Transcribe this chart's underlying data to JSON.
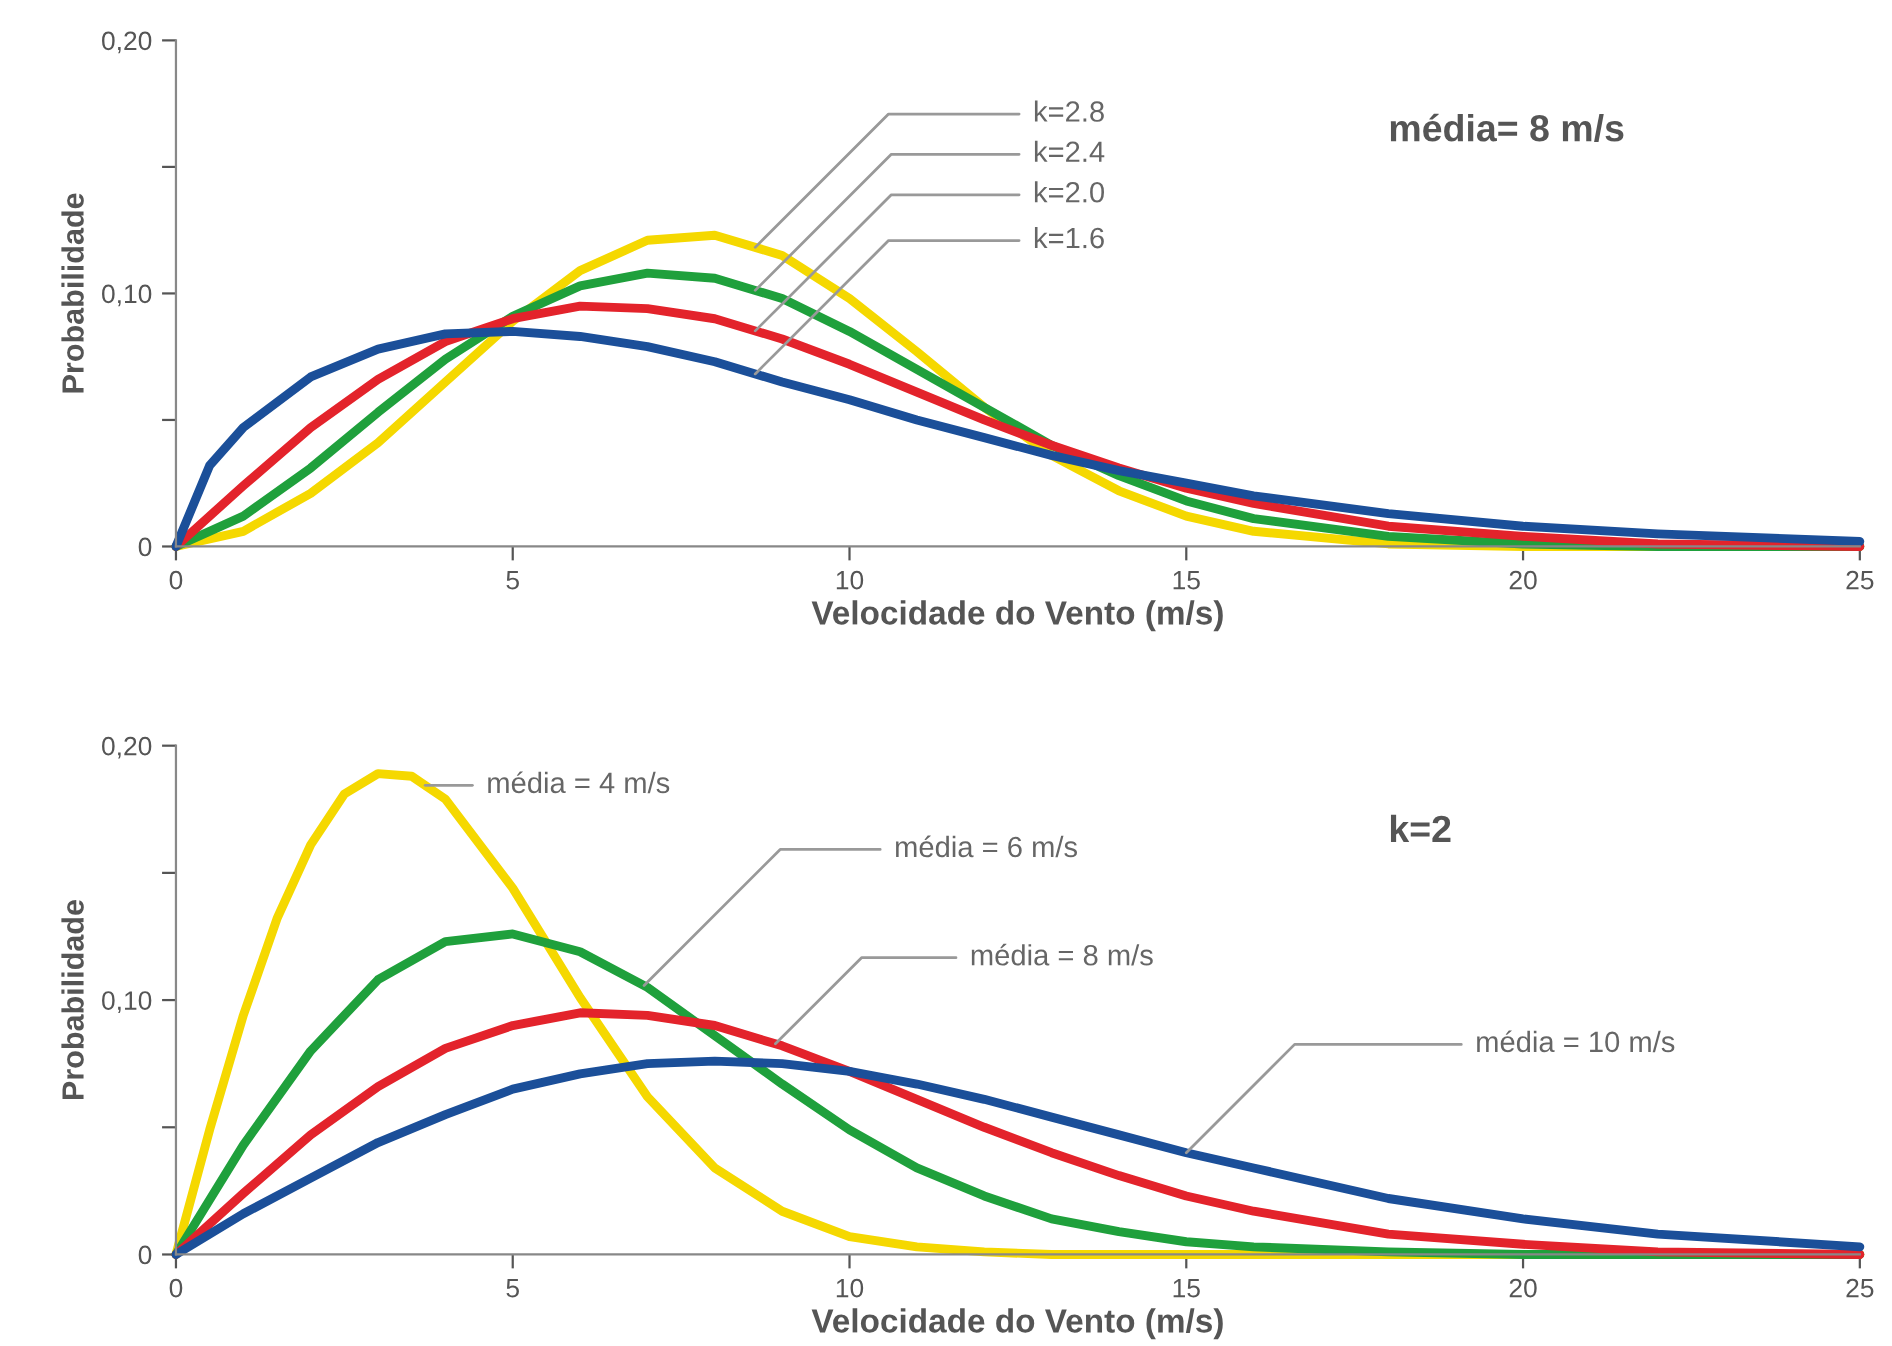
{
  "chart_data": [
    {
      "type": "line",
      "xlabel": "Velocidade do Vento (m/s)",
      "ylabel": "Probabilidade",
      "annotations": [
        "média= 8 m/s"
      ],
      "xlim": [
        0,
        25
      ],
      "ylim": [
        0,
        0.2
      ],
      "xticks": [
        0,
        5,
        10,
        15,
        20,
        25
      ],
      "yticks": [
        {
          "value": 0,
          "label": "0"
        },
        {
          "value": 0.05,
          "label": null
        },
        {
          "value": 0.1,
          "label": "0,10"
        },
        {
          "value": 0.15,
          "label": null
        },
        {
          "value": 0.2,
          "label": "0,20"
        }
      ],
      "series": [
        {
          "name": "k=2.8",
          "color": "#f5d800",
          "x": [
            0,
            1,
            2,
            3,
            4,
            5,
            6,
            7,
            8,
            9,
            10,
            11,
            12,
            13,
            14,
            15,
            16,
            18,
            20,
            22,
            25
          ],
          "values": [
            0,
            0.006,
            0.021,
            0.041,
            0.065,
            0.089,
            0.109,
            0.121,
            0.123,
            0.115,
            0.098,
            0.077,
            0.055,
            0.036,
            0.022,
            0.012,
            0.006,
            0.001,
            0,
            0,
            0
          ]
        },
        {
          "name": "k=2.4",
          "color": "#1fa03c",
          "x": [
            0,
            1,
            2,
            3,
            4,
            5,
            6,
            7,
            8,
            9,
            10,
            11,
            12,
            13,
            14,
            15,
            16,
            18,
            20,
            22,
            25
          ],
          "values": [
            0,
            0.012,
            0.031,
            0.053,
            0.074,
            0.091,
            0.103,
            0.108,
            0.106,
            0.098,
            0.085,
            0.07,
            0.055,
            0.04,
            0.028,
            0.018,
            0.011,
            0.004,
            0.001,
            0,
            0
          ]
        },
        {
          "name": "k=2.0",
          "color": "#e3232b",
          "x": [
            0,
            1,
            2,
            3,
            4,
            5,
            6,
            7,
            8,
            9,
            10,
            11,
            12,
            13,
            14,
            15,
            16,
            18,
            20,
            22,
            25
          ],
          "values": [
            0,
            0.024,
            0.047,
            0.066,
            0.081,
            0.09,
            0.095,
            0.094,
            0.09,
            0.082,
            0.072,
            0.061,
            0.05,
            0.04,
            0.031,
            0.023,
            0.017,
            0.008,
            0.004,
            0.001,
            0
          ]
        },
        {
          "name": "k=1.6",
          "color": "#1b4f99",
          "x": [
            0,
            0.5,
            1,
            2,
            3,
            4,
            5,
            6,
            7,
            8,
            9,
            10,
            11,
            12,
            13,
            14,
            15,
            16,
            18,
            20,
            22,
            25
          ],
          "values": [
            0,
            0.032,
            0.047,
            0.067,
            0.078,
            0.084,
            0.085,
            0.083,
            0.079,
            0.073,
            0.065,
            0.058,
            0.05,
            0.043,
            0.036,
            0.03,
            0.025,
            0.02,
            0.013,
            0.008,
            0.005,
            0.002
          ]
        }
      ]
    },
    {
      "type": "line",
      "xlabel": "Velocidade do Vento (m/s)",
      "ylabel": "Probabilidade",
      "annotations": [
        "k=2"
      ],
      "xlim": [
        0,
        25
      ],
      "ylim": [
        0,
        0.2
      ],
      "xticks": [
        0,
        5,
        10,
        15,
        20,
        25
      ],
      "yticks": [
        {
          "value": 0,
          "label": "0"
        },
        {
          "value": 0.05,
          "label": null
        },
        {
          "value": 0.1,
          "label": "0,10"
        },
        {
          "value": 0.15,
          "label": null
        },
        {
          "value": 0.2,
          "label": "0,20"
        }
      ],
      "series": [
        {
          "name": "média = 4 m/s",
          "color": "#f5d800",
          "x": [
            0,
            0.5,
            1,
            1.5,
            2,
            2.5,
            3,
            3.5,
            4,
            5,
            6,
            7,
            8,
            9,
            10,
            11,
            12,
            13,
            15,
            20,
            25
          ],
          "values": [
            0,
            0.049,
            0.094,
            0.132,
            0.161,
            0.181,
            0.189,
            0.188,
            0.179,
            0.144,
            0.101,
            0.062,
            0.034,
            0.017,
            0.007,
            0.003,
            0.001,
            0,
            0,
            0,
            0
          ]
        },
        {
          "name": "média = 6 m/s",
          "color": "#1fa03c",
          "x": [
            0,
            1,
            2,
            3,
            4,
            5,
            6,
            7,
            8,
            9,
            10,
            11,
            12,
            13,
            14,
            15,
            16,
            18,
            20,
            25
          ],
          "values": [
            0,
            0.043,
            0.08,
            0.108,
            0.123,
            0.126,
            0.119,
            0.105,
            0.086,
            0.067,
            0.049,
            0.034,
            0.023,
            0.014,
            0.009,
            0.005,
            0.003,
            0.001,
            0,
            0
          ]
        },
        {
          "name": "média = 8 m/s",
          "color": "#e3232b",
          "x": [
            0,
            1,
            2,
            3,
            4,
            5,
            6,
            7,
            8,
            9,
            10,
            11,
            12,
            13,
            14,
            15,
            16,
            18,
            20,
            22,
            25
          ],
          "values": [
            0,
            0.024,
            0.047,
            0.066,
            0.081,
            0.09,
            0.095,
            0.094,
            0.09,
            0.082,
            0.072,
            0.061,
            0.05,
            0.04,
            0.031,
            0.023,
            0.017,
            0.008,
            0.004,
            0.001,
            0
          ]
        },
        {
          "name": "média = 10 m/s",
          "color": "#1b4f99",
          "x": [
            0,
            1,
            2,
            3,
            4,
            5,
            6,
            7,
            8,
            9,
            10,
            11,
            12,
            13,
            14,
            15,
            16,
            18,
            20,
            22,
            25
          ],
          "values": [
            0,
            0.016,
            0.03,
            0.044,
            0.055,
            0.065,
            0.071,
            0.075,
            0.076,
            0.075,
            0.072,
            0.067,
            0.061,
            0.054,
            0.047,
            0.04,
            0.034,
            0.022,
            0.014,
            0.008,
            0.003
          ]
        }
      ]
    }
  ]
}
